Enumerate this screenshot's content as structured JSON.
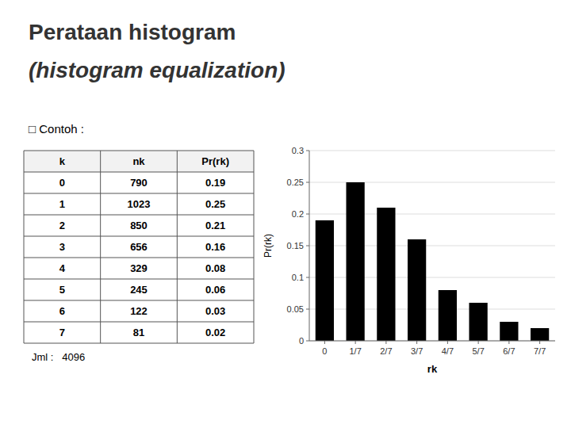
{
  "chart_data": [
    {
      "type": "bar",
      "title": "Perataan histogram",
      "subtitle": "(histogram equalization)",
      "annotations": [
        "□ Contoh :"
      ],
      "categories": [
        "0",
        "1/7",
        "2/7",
        "3/7",
        "4/7",
        "5/7",
        "6/7",
        "7/7"
      ],
      "values": [
        0.19,
        0.25,
        0.21,
        0.16,
        0.08,
        0.06,
        0.03,
        0.02
      ],
      "color": "#000000",
      "xlabel": "rk",
      "ylabel": "Pr(rk)",
      "ylim": [
        0,
        0.3
      ],
      "yticks": [
        0,
        0.05,
        0.1,
        0.15,
        0.2,
        0.25,
        0.3
      ],
      "grid": true
    },
    {
      "type": "table",
      "columns": [
        "k",
        "nk",
        "Pr(rk)"
      ],
      "rows": [
        [
          0,
          790,
          "0.19"
        ],
        [
          1,
          1023,
          "0.25"
        ],
        [
          2,
          850,
          "0.21"
        ],
        [
          3,
          656,
          "0.16"
        ],
        [
          4,
          329,
          "0.08"
        ],
        [
          5,
          245,
          "0.06"
        ],
        [
          6,
          122,
          "0.03"
        ],
        [
          7,
          81,
          "0.02"
        ]
      ],
      "annotations": [
        "Jml :   4096"
      ]
    }
  ]
}
